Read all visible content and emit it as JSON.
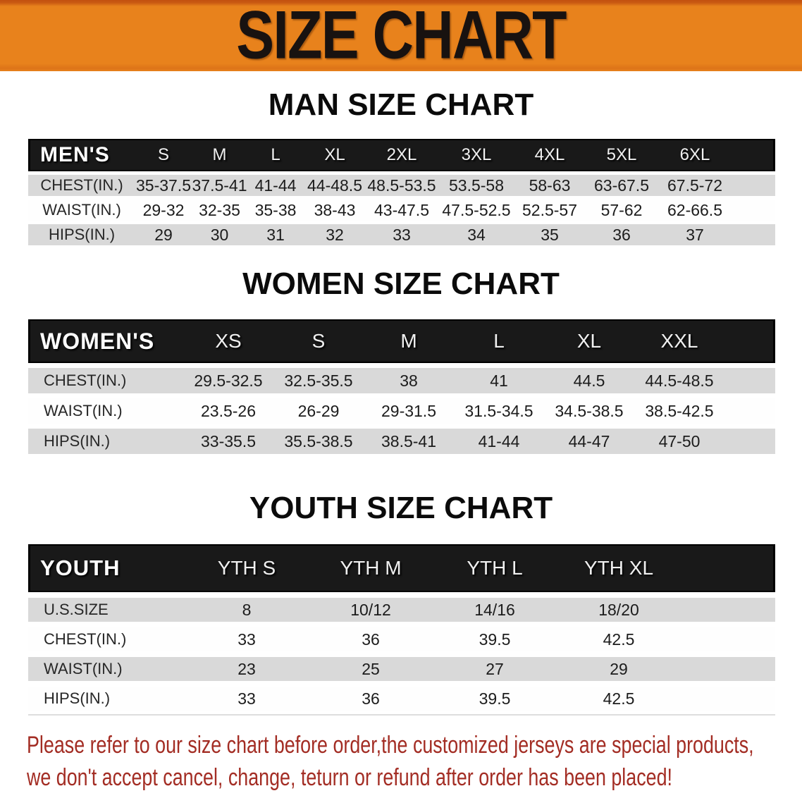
{
  "banner": {
    "title": "SIZE CHART",
    "background": "#E8821C",
    "text_color": "#181210"
  },
  "man_section": {
    "title": "MAN SIZE CHART"
  },
  "men": {
    "header": [
      "MEN'S",
      "S",
      "M",
      "L",
      "XL",
      "2XL",
      "3XL",
      "4XL",
      "5XL",
      "6XL"
    ],
    "rows": [
      {
        "label": "CHEST(IN.)",
        "values": [
          "35-37.5",
          "37.5-41",
          "41-44",
          "44-48.5",
          "48.5-53.5",
          "53.5-58",
          "58-63",
          "63-67.5",
          "67.5-72"
        ]
      },
      {
        "label": "WAIST(IN.)",
        "values": [
          "29-32",
          "32-35",
          "35-38",
          "38-43",
          "43-47.5",
          "47.5-52.5",
          "52.5-57",
          "57-62",
          "62-66.5"
        ]
      },
      {
        "label": "HIPS(IN.)",
        "values": [
          "29",
          "30",
          "31",
          "32",
          "33",
          "34",
          "35",
          "36",
          "37"
        ]
      }
    ]
  },
  "woman_section": {
    "title": "WOMEN SIZE CHART"
  },
  "women": {
    "header": [
      "WOMEN'S",
      "XS",
      "S",
      "M",
      "L",
      "XL",
      "XXL"
    ],
    "rows": [
      {
        "label": "CHEST(IN.)",
        "values": [
          "29.5-32.5",
          "32.5-35.5",
          "38",
          "41",
          "44.5",
          "44.5-48.5"
        ]
      },
      {
        "label": "WAIST(IN.)",
        "values": [
          "23.5-26",
          "26-29",
          "29-31.5",
          "31.5-34.5",
          "34.5-38.5",
          "38.5-42.5"
        ]
      },
      {
        "label": "HIPS(IN.)",
        "values": [
          "33-35.5",
          "35.5-38.5",
          "38.5-41",
          "41-44",
          "44-47",
          "47-50"
        ]
      }
    ]
  },
  "youth_section": {
    "title": "YOUTH SIZE CHART"
  },
  "youth": {
    "header": [
      "YOUTH",
      "YTH S",
      "YTH M",
      "YTH L",
      "YTH XL"
    ],
    "rows": [
      {
        "label": "U.S.SIZE",
        "values": [
          "8",
          "10/12",
          "14/16",
          "18/20"
        ]
      },
      {
        "label": "CHEST(IN.)",
        "values": [
          "33",
          "36",
          "39.5",
          "42.5"
        ]
      },
      {
        "label": "WAIST(IN.)",
        "values": [
          "23",
          "25",
          "27",
          "29"
        ]
      },
      {
        "label": "HIPS(IN.)",
        "values": [
          "33",
          "36",
          "39.5",
          "42.5"
        ]
      }
    ]
  },
  "disclaimer": {
    "line1": "Please refer to our size chart before order,the customized jerseys are special products,",
    "line2": "we don't accept cancel, change, teturn or refund after order has been placed!",
    "color": "#A32D24"
  }
}
